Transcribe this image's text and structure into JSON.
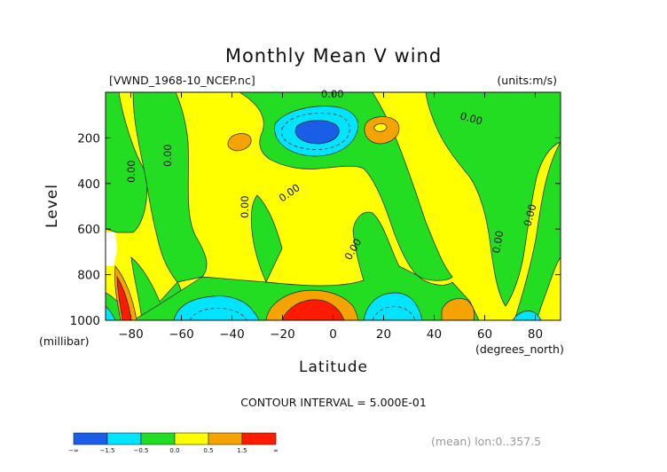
{
  "chart_data": {
    "type": "contour",
    "title": "Monthly Mean V wind",
    "file_label": "[VWND_1968-10_NCEP.nc]",
    "units_label": "(units:m/s)",
    "xlabel": "Latitude",
    "x_unit": "(degrees_north)",
    "ylabel": "Level",
    "y_unit": "(millibar)",
    "xlim": [
      -90,
      90
    ],
    "ylim": [
      1000,
      0
    ],
    "x_ticks": [
      -80,
      -60,
      -40,
      -20,
      0,
      20,
      40,
      60,
      80
    ],
    "y_ticks": [
      200,
      400,
      600,
      800,
      1000
    ],
    "contour_interval_text": "CONTOUR INTERVAL = 5.000E-01",
    "footer": "(mean) lon:0..357.5",
    "contour_labels": [
      "0.00",
      "0.00",
      "0.00",
      "0.00",
      "0.00",
      "0.00",
      "0.00",
      "0.00",
      "0.00",
      "0.00"
    ],
    "colorbar": {
      "labels": [
        "-∞",
        "-1.5",
        "-0.5",
        "0.0",
        "0.5",
        "1.5",
        "∞"
      ],
      "colors": [
        "#1a5ee8",
        "#00e5ff",
        "#22dd22",
        "#ffff00",
        "#f5a300",
        "#ff1a00"
      ]
    },
    "regions": [
      {
        "value_class": "0.0 to 0.5",
        "color": "#ffff00",
        "note": "background"
      },
      {
        "value_class": "-0.5 to 0.0",
        "color": "#22dd22"
      },
      {
        "value_class": "-1.5 to -0.5",
        "color": "#00e5ff"
      },
      {
        "value_class": "< -1.5",
        "color": "#1a5ee8"
      },
      {
        "value_class": "0.5 to 1.5",
        "color": "#f5a300"
      },
      {
        "value_class": "> 1.5",
        "color": "#ff1a00"
      }
    ]
  }
}
